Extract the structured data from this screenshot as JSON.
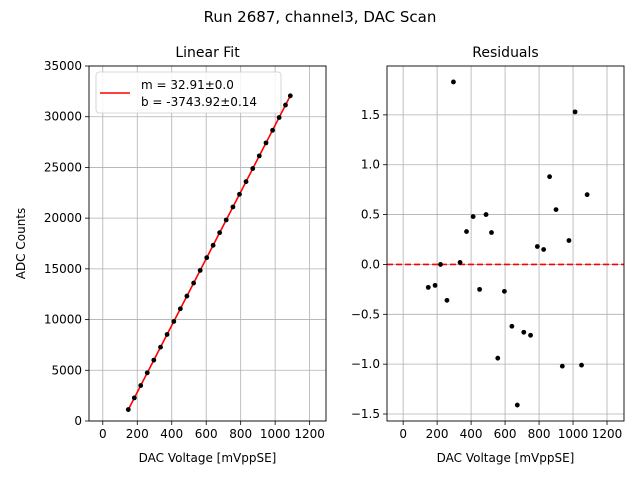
{
  "figure": {
    "title": "Run 2687, channel3, DAC Scan"
  },
  "colors": {
    "fit_line": "#ff0000",
    "points": "#000000",
    "grid": "#b0b0b0",
    "zero_line": "#ff0000"
  },
  "chart_data": [
    {
      "type": "scatter",
      "title": "Linear Fit",
      "xlabel": "DAC Voltage [mVppSE]",
      "ylabel": "ADC Counts",
      "xlim": [
        -80,
        1295
      ],
      "ylim": [
        0,
        35000
      ],
      "xticks": [
        0,
        200,
        400,
        600,
        800,
        1000,
        1200
      ],
      "xtick_labels": [
        "0",
        "200",
        "400",
        "600",
        "800",
        "1000",
        "1200"
      ],
      "yticks": [
        0,
        5000,
        10000,
        15000,
        20000,
        25000,
        30000,
        35000
      ],
      "ytick_labels": [
        "0",
        "5000",
        "10000",
        "15000",
        "20000",
        "25000",
        "30000",
        "35000"
      ],
      "grid": true,
      "legend_position": "top-left",
      "legend": [
        "m = 32.91±0.0",
        "b = -3743.92±0.14"
      ],
      "fit": {
        "slope": 32.91,
        "intercept": -3743.92,
        "x_range": [
          148,
          1088
        ]
      },
      "x": [
        148,
        183,
        220,
        258,
        296,
        335,
        373,
        412,
        450,
        488,
        527,
        565,
        603,
        640,
        678,
        716,
        755,
        793,
        831,
        870,
        908,
        947,
        985,
        1023,
        1060,
        1088
      ],
      "y": [
        1127,
        2279,
        3498,
        4748,
        6002,
        7281,
        8531,
        9816,
        11066,
        12316,
        13600,
        14850,
        16100,
        17320,
        18570,
        19820,
        21100,
        22350,
        23600,
        24890,
        26140,
        27420,
        28660,
        29920,
        31150,
        32063
      ]
    },
    {
      "type": "scatter",
      "title": "Residuals",
      "xlabel": "DAC Voltage [mVppSE]",
      "ylabel": "",
      "xlim": [
        -95,
        1300
      ],
      "ylim": [
        -1.57,
        1.99
      ],
      "xticks": [
        0,
        200,
        400,
        600,
        800,
        1000,
        1200
      ],
      "xtick_labels": [
        "0",
        "200",
        "400",
        "600",
        "800",
        "1000",
        "1200"
      ],
      "yticks": [
        -1.5,
        -1.0,
        -0.5,
        0.0,
        0.5,
        1.0,
        1.5
      ],
      "ytick_labels": [
        "−1.5",
        "−1.0",
        "−0.5",
        "0.0",
        "0.5",
        "1.0",
        "1.5"
      ],
      "grid": true,
      "reference_line": 0,
      "x": [
        148,
        188,
        220,
        258,
        296,
        335,
        373,
        412,
        450,
        488,
        520,
        557,
        596,
        640,
        672,
        710,
        750,
        790,
        827,
        862,
        900,
        937,
        976,
        1012,
        1050,
        1083
      ],
      "y": [
        -0.23,
        -0.21,
        0.0,
        -0.36,
        1.83,
        0.02,
        0.33,
        0.48,
        -0.25,
        0.5,
        0.32,
        -0.94,
        -0.27,
        -0.62,
        -1.41,
        -0.68,
        -0.71,
        0.18,
        0.15,
        0.88,
        0.55,
        -1.02,
        0.24,
        1.53,
        -1.01,
        0.7
      ]
    }
  ]
}
